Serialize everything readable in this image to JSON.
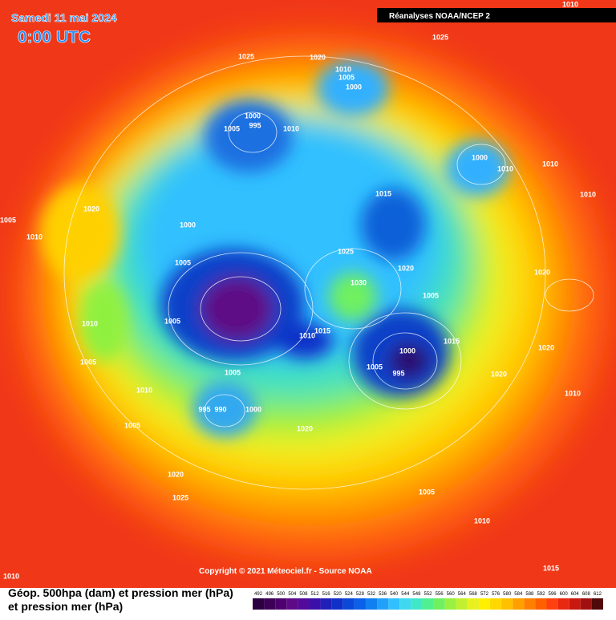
{
  "header": {
    "date": "Samedi 11 mai 2024",
    "time": "0:00 UTC",
    "source": "Réanalyses NOAA/NCEP 2"
  },
  "footer": {
    "copyright": "Copyright © 2021 Méteociel.fr - Source NOAA",
    "title_line1": "Géop. 500hpa (dam) et pression mer (hPa)",
    "title_line2": "et pression mer (hPa)"
  },
  "isobars": [
    "1010",
    "1025",
    "1025",
    "1020",
    "1010",
    "1005",
    "1000",
    "1000",
    "995",
    "1005",
    "1010",
    "1000",
    "1010",
    "1010",
    "1010",
    "1020",
    "1005",
    "1010",
    "1015",
    "1000",
    "1025",
    "1005",
    "1020",
    "1030",
    "1005",
    "1020",
    "1010",
    "1005",
    "1015",
    "1010",
    "1000",
    "1005",
    "995",
    "1015",
    "1020",
    "1005",
    "1005",
    "1020",
    "1010",
    "995",
    "990",
    "1000",
    "1010",
    "1005",
    "1020",
    "1020",
    "1025",
    "1005",
    "1010",
    "1015",
    "1010"
  ],
  "legend": {
    "levels": [
      492,
      496,
      500,
      504,
      508,
      512,
      516,
      520,
      524,
      528,
      532,
      536,
      540,
      544,
      548,
      552,
      556,
      560,
      564,
      568,
      572,
      576,
      580,
      584,
      588,
      592,
      596,
      600,
      604,
      608,
      612
    ],
    "colors": [
      "#2a0040",
      "#3c0056",
      "#4e006e",
      "#5e0a86",
      "#520a9a",
      "#3a10a8",
      "#2020b8",
      "#1030c8",
      "#0a48d8",
      "#0a60e8",
      "#1080f0",
      "#20a0f8",
      "#30c0ff",
      "#40d8f0",
      "#40e8c8",
      "#50f090",
      "#70f060",
      "#98f040",
      "#c0f030",
      "#e8f020",
      "#fff000",
      "#ffd800",
      "#ffc000",
      "#ffa000",
      "#ff8000",
      "#ff6000",
      "#ff4010",
      "#e82810",
      "#c81810",
      "#a01010",
      "#500808"
    ]
  }
}
